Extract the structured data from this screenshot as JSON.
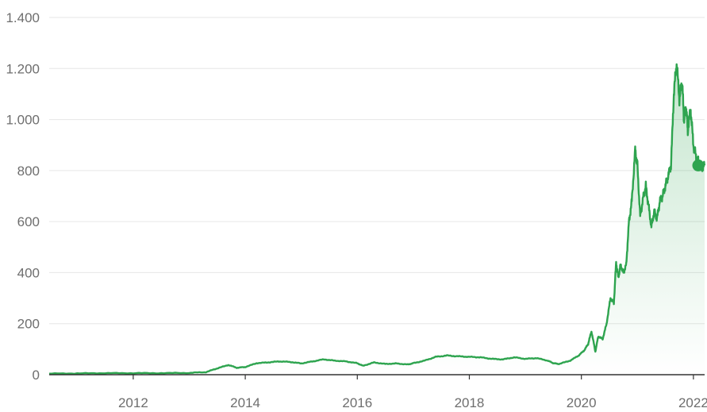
{
  "chart_data": {
    "type": "area",
    "title": "",
    "xlabel": "",
    "ylabel": "",
    "ylim": [
      0,
      1400
    ],
    "xlim": [
      2010.5,
      2022.2
    ],
    "yticks": [
      0,
      200,
      400,
      600,
      800,
      1000,
      1200,
      1400
    ],
    "ytick_labels": [
      "0",
      "200",
      "400",
      "600",
      "800",
      "1.000",
      "1.200",
      "1.400"
    ],
    "xticks": [
      2012,
      2014,
      2016,
      2018,
      2020,
      2022
    ],
    "xtick_labels": [
      "2012",
      "2014",
      "2016",
      "2018",
      "2020",
      "2022"
    ],
    "grid": "horizontal",
    "legend": "none",
    "colors": {
      "line": "#2ea44f",
      "area": "#2ea44f",
      "grid": "#e6e6e6",
      "axis": "#333333"
    },
    "series": [
      {
        "x": [
          2010.5,
          2011.0,
          2011.5,
          2012.0,
          2012.5,
          2013.0,
          2013.3,
          2013.5,
          2013.7,
          2013.85,
          2014.0,
          2014.2,
          2014.4,
          2014.6,
          2014.8,
          2015.0,
          2015.2,
          2015.4,
          2015.6,
          2015.8,
          2016.0,
          2016.1,
          2016.3,
          2016.5,
          2016.7,
          2016.9,
          2017.0,
          2017.2,
          2017.4,
          2017.6,
          2017.8,
          2018.0,
          2018.2,
          2018.4,
          2018.6,
          2018.8,
          2019.0,
          2019.2,
          2019.4,
          2019.5,
          2019.6,
          2019.8,
          2019.95,
          2020.05,
          2020.12,
          2020.18,
          2020.25,
          2020.3,
          2020.38,
          2020.45,
          2020.52,
          2020.58,
          2020.62,
          2020.66,
          2020.7,
          2020.75,
          2020.8,
          2020.85,
          2020.9,
          2020.96,
          2021.0,
          2021.05,
          2021.1,
          2021.15,
          2021.2,
          2021.25,
          2021.3,
          2021.35,
          2021.4,
          2021.45,
          2021.5,
          2021.55,
          2021.6,
          2021.65,
          2021.7,
          2021.75,
          2021.8,
          2021.83,
          2021.87,
          2021.9,
          2021.95,
          2022.0,
          2022.05,
          2022.1,
          2022.15,
          2022.2
        ],
        "values": [
          4,
          5,
          6,
          6,
          6,
          7,
          10,
          25,
          38,
          27,
          30,
          45,
          48,
          52,
          50,
          44,
          52,
          60,
          55,
          52,
          45,
          35,
          48,
          42,
          44,
          40,
          45,
          55,
          70,
          75,
          72,
          70,
          68,
          62,
          60,
          68,
          62,
          65,
          55,
          45,
          42,
          55,
          75,
          95,
          120,
          170,
          90,
          150,
          140,
          200,
          300,
          280,
          440,
          380,
          430,
          400,
          430,
          600,
          680,
          880,
          820,
          620,
          690,
          740,
          660,
          580,
          640,
          610,
          680,
          700,
          740,
          780,
          820,
          1100,
          1220,
          1080,
          1150,
          1000,
          1050,
          960,
          1040,
          900,
          850,
          830,
          810,
          820
        ]
      }
    ]
  }
}
